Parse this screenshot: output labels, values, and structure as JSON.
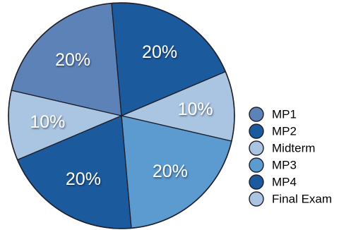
{
  "chart_data": {
    "type": "pie",
    "title": "",
    "legend_position": "bottom-right",
    "start_angle_deg": -23,
    "direction": "clockwise",
    "slices": [
      {
        "label": "Midterm",
        "value": 10,
        "display": "10%",
        "color": "#a9c5e2"
      },
      {
        "label": "MP3",
        "value": 20,
        "display": "20%",
        "color": "#5b9bd0"
      },
      {
        "label": "MP4",
        "value": 20,
        "display": "20%",
        "color": "#1c5a9e"
      },
      {
        "label": "Final Exam",
        "value": 10,
        "display": "10%",
        "color": "#a9c5e2"
      },
      {
        "label": "MP1",
        "value": 20,
        "display": "20%",
        "color": "#5c82b8"
      },
      {
        "label": "MP2",
        "value": 20,
        "display": "20%",
        "color": "#1c5a9e"
      }
    ],
    "legend": [
      {
        "label": "MP1",
        "color": "#5c82b8"
      },
      {
        "label": "MP2",
        "color": "#1c5a9e"
      },
      {
        "label": "Midterm",
        "color": "#a9c5e2"
      },
      {
        "label": "MP3",
        "color": "#5b9bd0"
      },
      {
        "label": "MP4",
        "color": "#1c5a9e"
      },
      {
        "label": "Final Exam",
        "color": "#a9c5e2"
      }
    ]
  }
}
